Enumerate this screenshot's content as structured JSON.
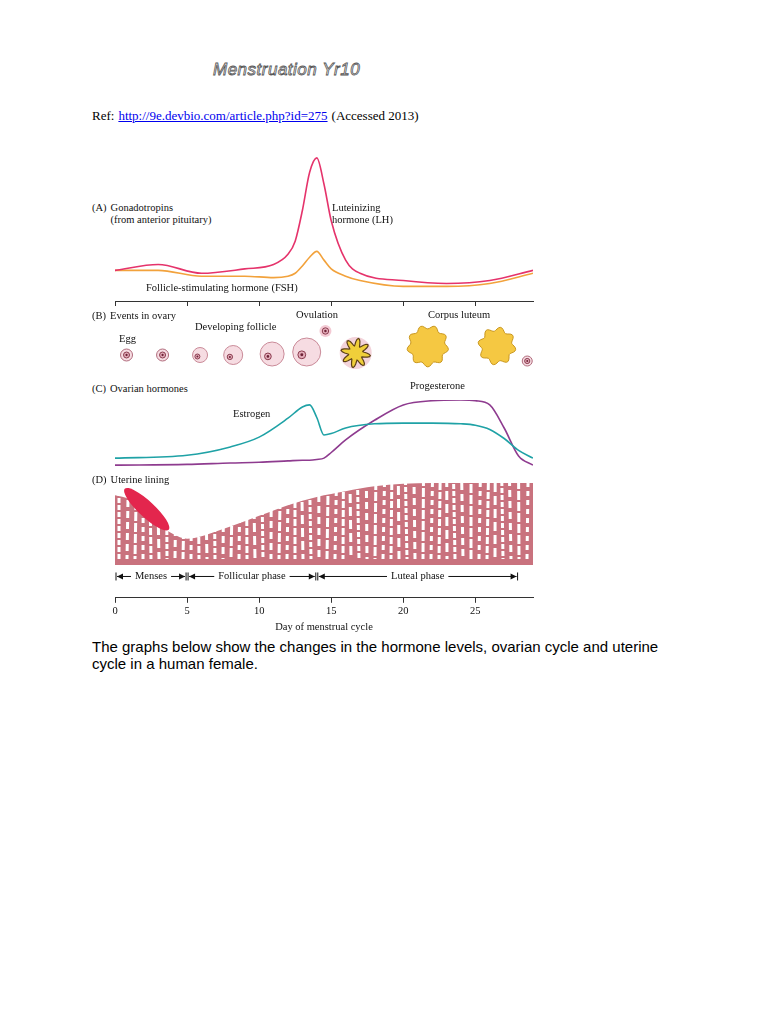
{
  "header": {
    "title": "Menstruation Yr10",
    "ref_prefix": "Ref:",
    "ref_url": "http://9e.devbio.com/article.php?id=275",
    "ref_suffix": "(Accessed 2013)"
  },
  "ovary": {
    "label": "(B)",
    "title": "Events in ovary",
    "egg": "Egg",
    "follicle": "Developing follicle",
    "ovulation": "Ovulation",
    "corpus_luteum": "Corpus luteum"
  },
  "chart_data": [
    {
      "type": "line",
      "label": "(A)",
      "title": "Gonadotropins",
      "subtitle": "(from anterior pituitary)",
      "x": [
        0,
        3,
        6,
        9,
        11,
        12,
        12.5,
        13,
        13.5,
        14,
        14.5,
        15,
        16,
        17,
        20,
        23,
        26,
        29
      ],
      "xlim": [
        0,
        29
      ],
      "xticks": [
        0,
        5,
        10,
        15,
        20,
        25
      ],
      "ylim": [
        0,
        100
      ],
      "tick_labels": false,
      "series": [
        {
          "name": "Luteinizing hormone (LH)",
          "color": "#e5336b",
          "values": [
            21,
            25,
            19,
            22,
            25,
            32,
            41,
            62,
            88,
            98,
            80,
            55,
            28,
            19,
            14,
            12,
            14,
            21
          ]
        },
        {
          "name": "Follicle-stimulating hormone (FSH)",
          "color": "#f2a23c",
          "values": [
            21,
            21,
            17,
            17,
            16,
            17,
            19,
            24,
            30,
            34,
            28,
            22,
            17,
            14,
            10,
            10,
            12,
            19
          ]
        }
      ]
    },
    {
      "type": "line",
      "label": "(C)",
      "title": "Ovarian hormones",
      "x": [
        0,
        5,
        8,
        10,
        12,
        13,
        13.5,
        14,
        14.5,
        15,
        16,
        18,
        20,
        22,
        24,
        25,
        26,
        27,
        28,
        29
      ],
      "xlim": [
        0,
        29
      ],
      "ylim": [
        0,
        100
      ],
      "tick_labels": false,
      "series": [
        {
          "name": "Estrogen",
          "color": "#1fa2a6",
          "values": [
            17,
            21,
            33,
            47,
            74,
            90,
            93,
            75,
            50,
            52,
            60,
            66,
            67,
            67,
            66,
            64,
            58,
            45,
            28,
            17
          ]
        },
        {
          "name": "Progesterone",
          "color": "#8e3b8f",
          "values": [
            7,
            8,
            10,
            11,
            13,
            14,
            14,
            15,
            17,
            25,
            43,
            71,
            93,
            99,
            100,
            99,
            93,
            60,
            20,
            7
          ]
        }
      ]
    },
    {
      "type": "area",
      "label": "(D)",
      "title": "Uterine lining",
      "x": [
        0,
        1,
        2,
        3,
        4,
        5,
        6,
        7,
        8,
        10,
        12,
        14,
        16,
        18,
        20,
        22,
        24,
        26,
        28,
        29
      ],
      "values": [
        85,
        80,
        66,
        50,
        38,
        32,
        35,
        41,
        47,
        60,
        73,
        83,
        90,
        96,
        99,
        100,
        100,
        100,
        100,
        100
      ],
      "color": "#c9727e",
      "xlim": [
        0,
        29
      ],
      "xticks": [
        0,
        5,
        10,
        15,
        20,
        25
      ],
      "ylim": [
        -40,
        100
      ],
      "tick_labels": "x",
      "xlabel": "Day of menstrual cycle",
      "phases": [
        {
          "label": "Menses",
          "start": 0,
          "end": 5
        },
        {
          "label": "Follicular phase",
          "start": 5,
          "end": 14
        },
        {
          "label": "Luteal phase",
          "start": 14,
          "end": 28
        }
      ]
    }
  ],
  "caption": "The graphs below show the changes in the hormone levels, ovarian cycle and uterine cycle in a human female."
}
